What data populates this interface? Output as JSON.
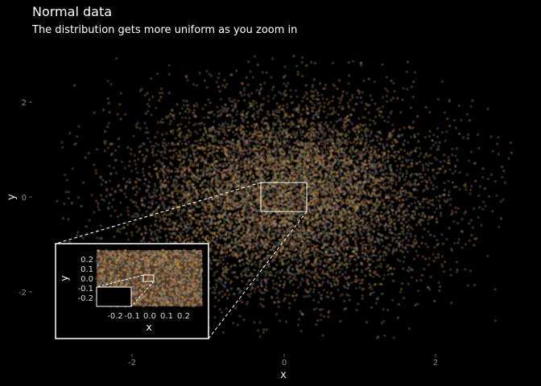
{
  "chart_data": {
    "type": "scatter",
    "title": "Normal data",
    "subtitle": "The distribution gets more uniform as you zoom in",
    "xlabel": "x",
    "ylabel": "y",
    "xlim": [
      -3.05,
      3.15
    ],
    "ylim": [
      -3.05,
      3.1
    ],
    "x_ticks": [
      -2,
      0,
      2
    ],
    "y_ticks": [
      -2,
      0,
      2
    ],
    "x_tick_labels": [
      "-2",
      "0",
      "2"
    ],
    "y_tick_labels": [
      "-2",
      "0",
      "2"
    ],
    "distribution": "bivariate normal, mean 0, sd 1, truncated at ±3",
    "n_points_approx": 50000,
    "point_colors": [
      "#c98a3b",
      "#b87a5e",
      "#8f8a55",
      "#a36a6a",
      "#6f7f8f",
      "#d0a050",
      "#7a8a6a"
    ],
    "background": "#000000",
    "zoom_region": {
      "x": [
        -0.3,
        0.3
      ],
      "y": [
        -0.3,
        0.3
      ]
    },
    "inset": {
      "xlabel": "x",
      "ylabel": "y",
      "xlim": [
        -0.3,
        0.3
      ],
      "ylim": [
        -0.3,
        0.3
      ],
      "x_tick_labels": [
        "-0.2",
        "-0.1",
        "0.0",
        "0.1",
        "0.2"
      ],
      "y_tick_labels": [
        "0.2",
        "0.1",
        "0.0",
        "-0.1",
        "-0.2"
      ],
      "zoom_region": {
        "x": [
          -0.03,
          0.03
        ],
        "y": [
          -0.03,
          0.03
        ]
      }
    }
  }
}
